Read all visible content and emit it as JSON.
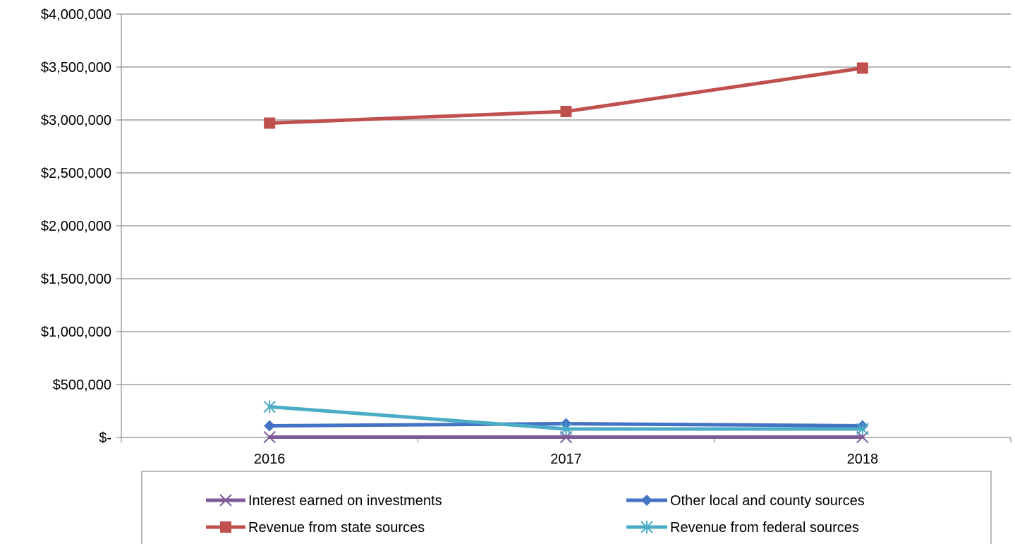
{
  "chart_data": {
    "type": "line",
    "categories": [
      "2016",
      "2017",
      "2018"
    ],
    "x": [
      "2016",
      "2017",
      "2018"
    ],
    "ylim": [
      0,
      4000000
    ],
    "y_ticks": [
      0,
      500000,
      1000000,
      1500000,
      2000000,
      2500000,
      3000000,
      3500000,
      4000000
    ],
    "y_tick_labels": [
      "$-",
      "$500,000",
      "$1,000,000",
      "$1,500,000",
      "$2,000,000",
      "$2,500,000",
      "$3,000,000",
      "$3,500,000",
      "$4,000,000"
    ],
    "grid": true,
    "legend_position": "bottom",
    "series": [
      {
        "name": "Interest earned on investments",
        "values": [
          3000,
          3000,
          3000
        ],
        "color": "#7F5A99",
        "marker": "x"
      },
      {
        "name": "Other local and county sources",
        "values": [
          110000,
          130000,
          110000
        ],
        "color": "#4472C4",
        "marker": "diamond"
      },
      {
        "name": "Revenue from state sources",
        "values": [
          2970000,
          3080000,
          3490000
        ],
        "color": "#C0504D",
        "marker": "square"
      },
      {
        "name": "Revenue from federal sources",
        "values": [
          290000,
          80000,
          80000
        ],
        "color": "#4BACC6",
        "marker": "star"
      }
    ]
  }
}
